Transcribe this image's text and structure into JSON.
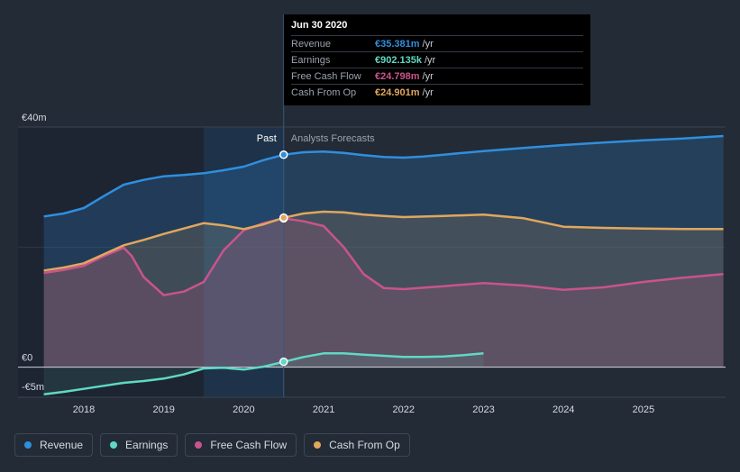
{
  "chart_data": {
    "type": "area",
    "currency_ticks": [
      {
        "label": "€40m",
        "value": 40
      },
      {
        "label": "€0",
        "value": 0
      },
      {
        "label": "-€5m",
        "value": -5
      }
    ],
    "ylim": [
      -5,
      40
    ],
    "xlim": [
      2017.5,
      2026.0
    ],
    "x_ticks": [
      "2018",
      "2019",
      "2020",
      "2021",
      "2022",
      "2023",
      "2024",
      "2025"
    ],
    "past_label": "Past",
    "forecast_label": "Analysts Forecasts",
    "divider_x": 2020.5,
    "series": [
      {
        "name": "Revenue",
        "color": "#2f8fdf",
        "points": [
          [
            2017.5,
            25.1
          ],
          [
            2017.75,
            25.6
          ],
          [
            2018.0,
            26.5
          ],
          [
            2018.25,
            28.5
          ],
          [
            2018.5,
            30.4
          ],
          [
            2018.75,
            31.2
          ],
          [
            2019.0,
            31.8
          ],
          [
            2019.25,
            32.0
          ],
          [
            2019.5,
            32.3
          ],
          [
            2019.75,
            32.8
          ],
          [
            2020.0,
            33.4
          ],
          [
            2020.25,
            34.5
          ],
          [
            2020.5,
            35.381
          ],
          [
            2020.75,
            35.8
          ],
          [
            2021.0,
            35.9
          ],
          [
            2021.25,
            35.7
          ],
          [
            2021.5,
            35.3
          ],
          [
            2021.75,
            35.0
          ],
          [
            2022.0,
            34.9
          ],
          [
            2022.25,
            35.1
          ],
          [
            2022.5,
            35.4
          ],
          [
            2023.0,
            36.0
          ],
          [
            2023.5,
            36.5
          ],
          [
            2024.0,
            37.0
          ],
          [
            2024.5,
            37.4
          ],
          [
            2025.0,
            37.8
          ],
          [
            2025.5,
            38.1
          ],
          [
            2026.0,
            38.5
          ]
        ]
      },
      {
        "name": "Earnings",
        "color": "#5fd9c4",
        "points": [
          [
            2017.5,
            -4.5
          ],
          [
            2017.75,
            -4.1
          ],
          [
            2018.0,
            -3.6
          ],
          [
            2018.25,
            -3.1
          ],
          [
            2018.5,
            -2.6
          ],
          [
            2018.75,
            -2.3
          ],
          [
            2019.0,
            -1.9
          ],
          [
            2019.25,
            -1.2
          ],
          [
            2019.5,
            -0.2
          ],
          [
            2019.75,
            -0.1
          ],
          [
            2020.0,
            -0.4
          ],
          [
            2020.25,
            0.1
          ],
          [
            2020.5,
            0.902
          ],
          [
            2020.75,
            1.7
          ],
          [
            2021.0,
            2.3
          ],
          [
            2021.25,
            2.3
          ],
          [
            2021.5,
            2.1
          ],
          [
            2021.75,
            1.9
          ],
          [
            2022.0,
            1.7
          ],
          [
            2022.25,
            1.7
          ],
          [
            2022.5,
            1.8
          ],
          [
            2022.75,
            2.0
          ],
          [
            2023.0,
            2.3
          ]
        ]
      },
      {
        "name": "Free Cash Flow",
        "color": "#c9548c",
        "points": [
          [
            2017.5,
            15.7
          ],
          [
            2017.75,
            16.2
          ],
          [
            2018.0,
            16.9
          ],
          [
            2018.25,
            18.5
          ],
          [
            2018.5,
            19.9
          ],
          [
            2018.6,
            18.5
          ],
          [
            2018.75,
            15.0
          ],
          [
            2019.0,
            12.0
          ],
          [
            2019.25,
            12.6
          ],
          [
            2019.5,
            14.2
          ],
          [
            2019.75,
            19.5
          ],
          [
            2020.0,
            22.8
          ],
          [
            2020.25,
            24.0
          ],
          [
            2020.5,
            24.798
          ],
          [
            2020.75,
            24.3
          ],
          [
            2021.0,
            23.5
          ],
          [
            2021.25,
            20.0
          ],
          [
            2021.5,
            15.5
          ],
          [
            2021.75,
            13.2
          ],
          [
            2022.0,
            13.0
          ],
          [
            2022.5,
            13.5
          ],
          [
            2023.0,
            14.0
          ],
          [
            2023.5,
            13.6
          ],
          [
            2024.0,
            12.9
          ],
          [
            2024.5,
            13.3
          ],
          [
            2025.0,
            14.2
          ],
          [
            2025.5,
            14.9
          ],
          [
            2026.0,
            15.5
          ]
        ]
      },
      {
        "name": "Cash From Op",
        "color": "#e0a75e",
        "points": [
          [
            2017.5,
            16.1
          ],
          [
            2017.75,
            16.6
          ],
          [
            2018.0,
            17.3
          ],
          [
            2018.25,
            18.8
          ],
          [
            2018.5,
            20.3
          ],
          [
            2018.75,
            21.2
          ],
          [
            2019.0,
            22.2
          ],
          [
            2019.25,
            23.1
          ],
          [
            2019.5,
            24.0
          ],
          [
            2019.75,
            23.6
          ],
          [
            2020.0,
            23.0
          ],
          [
            2020.25,
            23.8
          ],
          [
            2020.5,
            24.901
          ],
          [
            2020.75,
            25.6
          ],
          [
            2021.0,
            25.9
          ],
          [
            2021.25,
            25.8
          ],
          [
            2021.5,
            25.4
          ],
          [
            2021.75,
            25.2
          ],
          [
            2022.0,
            25.0
          ],
          [
            2022.5,
            25.2
          ],
          [
            2023.0,
            25.4
          ],
          [
            2023.5,
            24.8
          ],
          [
            2024.0,
            23.4
          ],
          [
            2024.5,
            23.2
          ],
          [
            2025.0,
            23.1
          ],
          [
            2025.5,
            23.0
          ],
          [
            2026.0,
            23.0
          ]
        ]
      }
    ]
  },
  "tooltip": {
    "date": "Jun 30 2020",
    "rows": [
      {
        "label": "Revenue",
        "value": "€35.381m",
        "unit": "/yr",
        "color": "#2f8fdf"
      },
      {
        "label": "Earnings",
        "value": "€902.135k",
        "unit": "/yr",
        "color": "#5fd9c4"
      },
      {
        "label": "Free Cash Flow",
        "value": "€24.798m",
        "unit": "/yr",
        "color": "#c9548c"
      },
      {
        "label": "Cash From Op",
        "value": "€24.901m",
        "unit": "/yr",
        "color": "#e0a75e"
      }
    ]
  },
  "legend": [
    {
      "label": "Revenue",
      "color": "#2f8fdf"
    },
    {
      "label": "Earnings",
      "color": "#5fd9c4"
    },
    {
      "label": "Free Cash Flow",
      "color": "#c9548c"
    },
    {
      "label": "Cash From Op",
      "color": "#e0a75e"
    }
  ]
}
